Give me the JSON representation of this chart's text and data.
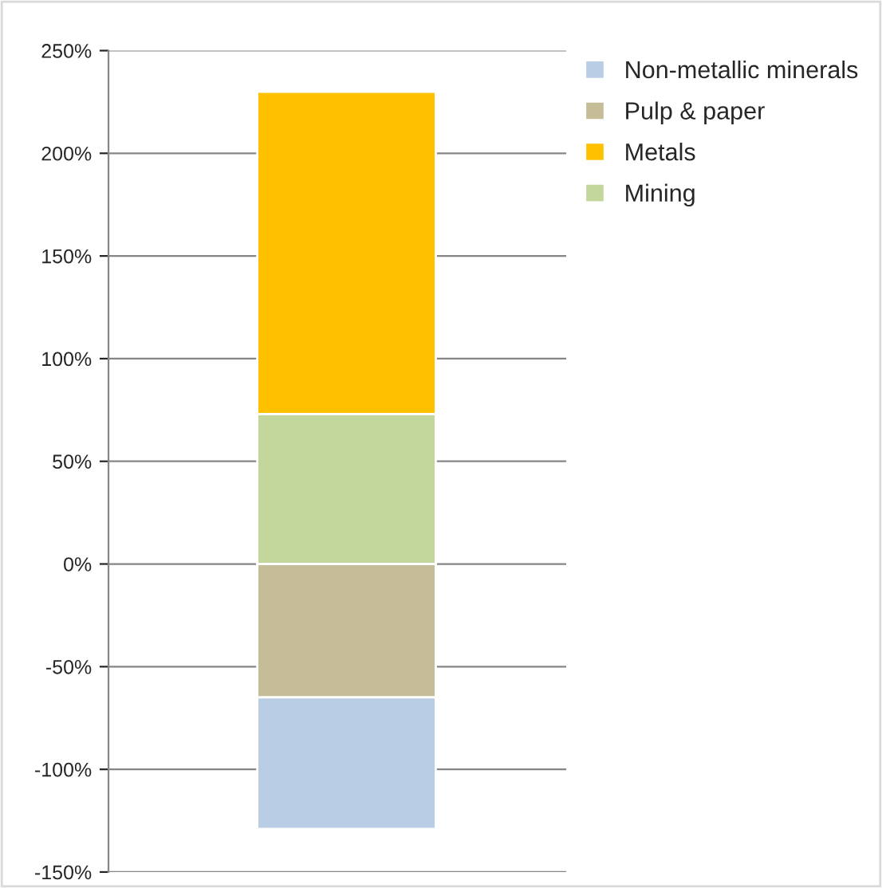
{
  "chart_data": {
    "type": "bar",
    "stacked": true,
    "categories": [
      null
    ],
    "series": [
      {
        "name": "Mining",
        "color": "#c3d69b",
        "values": [
          73
        ]
      },
      {
        "name": "Metals",
        "color": "#ffc000",
        "values": [
          157
        ]
      },
      {
        "name": "Pulp & paper",
        "color": "#c4bd97",
        "values": [
          -65
        ]
      },
      {
        "name": "Non-metallic minerals",
        "color": "#b9cde5",
        "values": [
          -64
        ]
      }
    ],
    "ylim": [
      -150,
      250
    ],
    "yticks": [
      {
        "value": -150,
        "label": "-150%"
      },
      {
        "value": -100,
        "label": "-100%"
      },
      {
        "value": -50,
        "label": "-50%"
      },
      {
        "value": 0,
        "label": "0%"
      },
      {
        "value": 50,
        "label": "50%"
      },
      {
        "value": 100,
        "label": "100%"
      },
      {
        "value": 150,
        "label": "150%"
      },
      {
        "value": 200,
        "label": "200%"
      },
      {
        "value": 250,
        "label": "250%"
      }
    ],
    "grid": "y",
    "legend": "top right",
    "tick_labels": "y"
  }
}
